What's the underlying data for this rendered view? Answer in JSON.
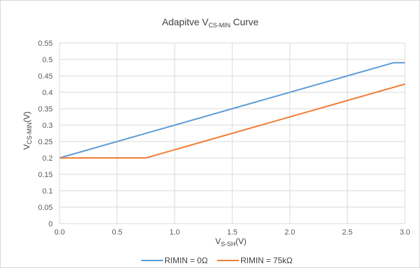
{
  "chart_data": {
    "type": "line",
    "title": {
      "main": "Adapitve V",
      "sub": "CS-MIN",
      "tail": " Curve"
    },
    "xlabel": {
      "main": "V",
      "sub": "S-SH",
      "tail": "(V)"
    },
    "ylabel": {
      "main": "V",
      "sub": "CS-MIN",
      "tail": "(V)"
    },
    "xlim": [
      0,
      3
    ],
    "ylim": [
      0,
      0.55
    ],
    "x_ticks": [
      "0.0",
      "0.5",
      "1.0",
      "1.5",
      "2.0",
      "2.5",
      "3.0"
    ],
    "y_ticks": [
      "0",
      "0.05",
      "0.1",
      "0.15",
      "0.2",
      "0.25",
      "0.3",
      "0.35",
      "0.4",
      "0.45",
      "0.5",
      "0.55"
    ],
    "grid": true,
    "legend_position": "bottom",
    "series": [
      {
        "name": "RIMIN = 0Ω",
        "color": "#5b9bd5",
        "points": [
          [
            0,
            0.2
          ],
          [
            2.9,
            0.49
          ],
          [
            3.0,
            0.49
          ]
        ]
      },
      {
        "name": "RIMIN = 75kΩ",
        "color": "#ed7d31",
        "points": [
          [
            0,
            0.2
          ],
          [
            0.75,
            0.2
          ],
          [
            3.0,
            0.425
          ]
        ]
      }
    ]
  }
}
